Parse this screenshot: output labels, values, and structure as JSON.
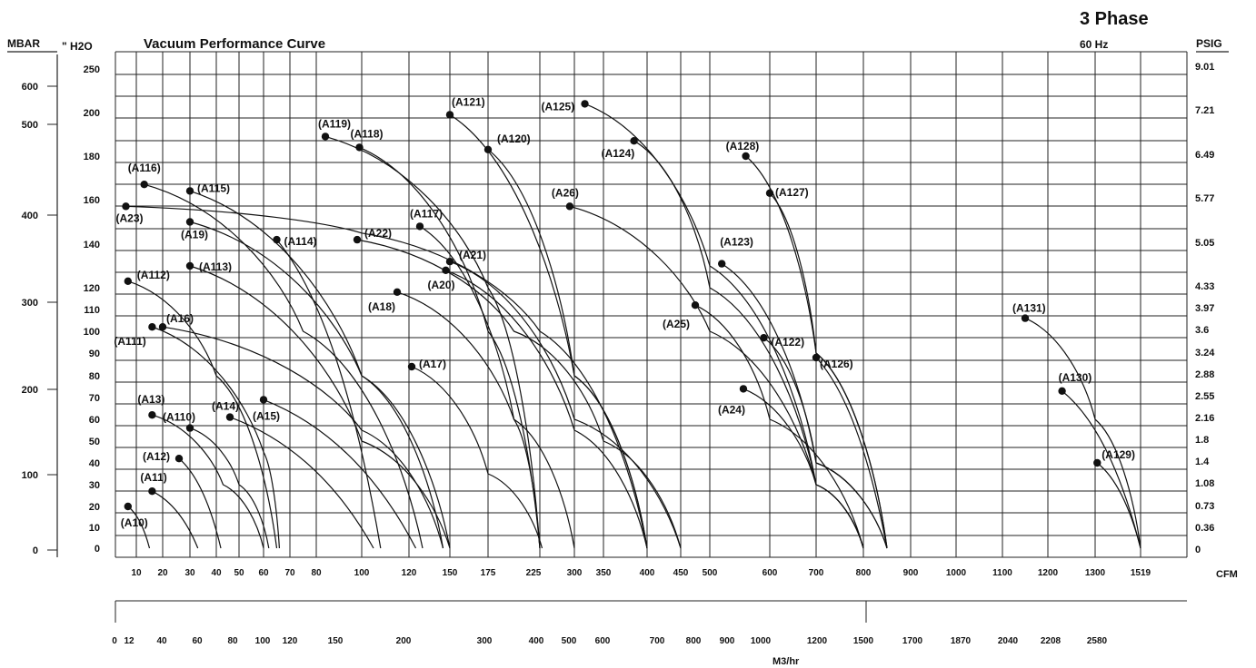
{
  "chart_data": {
    "type": "line",
    "title": "Vacuum Performance Curve",
    "phase_label": "3 Phase",
    "frequency_label": "60 Hz",
    "left_outer_unit": "MBAR",
    "left_inner_unit": "\" H2O",
    "right_unit": "PSIG",
    "x_unit": "CFM",
    "x2_unit": "M3/hr",
    "inh2o_ticks": [
      "250",
      "200",
      "180",
      "160",
      "140",
      "120",
      "110",
      "100",
      "90",
      "80",
      "70",
      "60",
      "50",
      "40",
      "30",
      "20",
      "10",
      "0"
    ],
    "mbar_ticks": [
      "600",
      "500",
      "400",
      "300",
      "200",
      "100",
      "0"
    ],
    "psig_ticks": [
      "9.01",
      "7.21",
      "6.49",
      "5.77",
      "5.05",
      "4.33",
      "3.97",
      "3.6",
      "3.24",
      "2.88",
      "2.55",
      "2.16",
      "1.8",
      "1.4",
      "1.08",
      "0.73",
      "0.36",
      "0"
    ],
    "cfm_ticks": [
      "10",
      "20",
      "30",
      "40",
      "50",
      "60",
      "70",
      "80",
      "100",
      "120",
      "150",
      "175",
      "225",
      "300",
      "350",
      "400",
      "450",
      "500",
      "600",
      "700",
      "800",
      "900",
      "1000",
      "1100",
      "1200",
      "1300",
      "1519"
    ],
    "m3hr_ticks": [
      "0",
      "12",
      "40",
      "60",
      "80",
      "100",
      "120",
      "150",
      "200",
      "300",
      "400",
      "500",
      "600",
      "700",
      "800",
      "900",
      "1000",
      "1200",
      "1500",
      "1700",
      "1870",
      "2040",
      "2208",
      "2580"
    ],
    "series": [
      {
        "name": "(A10)",
        "points": [
          [
            6,
            20
          ],
          [
            15,
            0
          ]
        ]
      },
      {
        "name": "(A11)",
        "points": [
          [
            16,
            27
          ],
          [
            33,
            0
          ]
        ]
      },
      {
        "name": "(A12)",
        "points": [
          [
            26,
            42
          ],
          [
            42,
            0
          ]
        ]
      },
      {
        "name": "(A13)",
        "points": [
          [
            16,
            62
          ],
          [
            43,
            30
          ],
          [
            60,
            0
          ]
        ]
      },
      {
        "name": "(A110)",
        "points": [
          [
            30,
            56
          ],
          [
            50,
            30
          ],
          [
            62,
            0
          ]
        ]
      },
      {
        "name": "(A14)",
        "points": [
          [
            46,
            61
          ],
          [
            105,
            0
          ]
        ]
      },
      {
        "name": "(A15)",
        "points": [
          [
            60,
            69
          ],
          [
            125,
            0
          ]
        ]
      },
      {
        "name": "(A111)",
        "points": [
          [
            16,
            102
          ],
          [
            60,
            45
          ],
          [
            66,
            0
          ]
        ]
      },
      {
        "name": "(A16)",
        "points": [
          [
            20,
            102
          ],
          [
            100,
            55
          ],
          [
            145,
            0
          ]
        ]
      },
      {
        "name": "(A112)",
        "points": [
          [
            6,
            123
          ],
          [
            40,
            80
          ],
          [
            65,
            0
          ]
        ]
      },
      {
        "name": "(A113)",
        "points": [
          [
            30,
            130
          ],
          [
            100,
            50
          ],
          [
            150,
            0
          ]
        ]
      },
      {
        "name": "(A17)",
        "points": [
          [
            122,
            84
          ],
          [
            175,
            35
          ],
          [
            230,
            0
          ]
        ]
      },
      {
        "name": "(A18)",
        "points": [
          [
            115,
            118
          ],
          [
            200,
            60
          ],
          [
            300,
            0
          ]
        ]
      },
      {
        "name": "(A19)",
        "points": [
          [
            30,
            150
          ],
          [
            100,
            80
          ],
          [
            150,
            0
          ]
        ]
      },
      {
        "name": "(A20)",
        "points": [
          [
            147,
            128
          ],
          [
            300,
            55
          ],
          [
            400,
            0
          ]
        ]
      },
      {
        "name": "(A21)",
        "points": [
          [
            150,
            132
          ],
          [
            300,
            60
          ],
          [
            450,
            0
          ]
        ]
      },
      {
        "name": "(A114)",
        "points": [
          [
            65,
            142
          ],
          [
            108,
            0
          ]
        ]
      },
      {
        "name": "(A115)",
        "points": [
          [
            30,
            164
          ],
          [
            100,
            80
          ],
          [
            145,
            0
          ]
        ]
      },
      {
        "name": "(A116)",
        "points": [
          [
            13,
            167
          ],
          [
            75,
            100
          ],
          [
            130,
            0
          ]
        ]
      },
      {
        "name": "(A117)",
        "points": [
          [
            128,
            148
          ],
          [
            200,
            60
          ],
          [
            225,
            0
          ]
        ]
      },
      {
        "name": "(A22)",
        "points": [
          [
            98,
            142
          ],
          [
            200,
            100
          ],
          [
            350,
            50
          ],
          [
            450,
            0
          ]
        ]
      },
      {
        "name": "(A23)",
        "points": [
          [
            5,
            157
          ],
          [
            100,
            145
          ],
          [
            225,
            100
          ],
          [
            400,
            0
          ]
        ]
      },
      {
        "name": "(A118)",
        "points": [
          [
            99,
            184
          ],
          [
            175,
            100
          ],
          [
            225,
            0
          ]
        ]
      },
      {
        "name": "(A119)",
        "points": [
          [
            84,
            189
          ],
          [
            175,
            120
          ],
          [
            225,
            0
          ]
        ]
      },
      {
        "name": "(A120)",
        "points": [
          [
            175,
            183
          ],
          [
            300,
            80
          ],
          [
            400,
            0
          ]
        ]
      },
      {
        "name": "(A121)",
        "points": [
          [
            150,
            199
          ],
          [
            300,
            80
          ],
          [
            400,
            0
          ]
        ]
      },
      {
        "name": "(A24)",
        "points": [
          [
            556,
            74
          ],
          [
            700,
            30
          ],
          [
            800,
            0
          ]
        ]
      },
      {
        "name": "(A25)",
        "points": [
          [
            475,
            112
          ],
          [
            600,
            60
          ],
          [
            800,
            0
          ]
        ]
      },
      {
        "name": "(A26)",
        "points": [
          [
            290,
            157
          ],
          [
            500,
            100
          ],
          [
            700,
            30
          ],
          [
            800,
            0
          ]
        ]
      },
      {
        "name": "(A122)",
        "points": [
          [
            590,
            97
          ],
          [
            700,
            40
          ],
          [
            850,
            0
          ]
        ]
      },
      {
        "name": "(A123)",
        "points": [
          [
            520,
            131
          ],
          [
            700,
            40
          ],
          [
            850,
            0
          ]
        ]
      },
      {
        "name": "(A124)",
        "points": [
          [
            385,
            187
          ],
          [
            500,
            120
          ],
          [
            700,
            30
          ],
          [
            800,
            0
          ]
        ]
      },
      {
        "name": "(A125)",
        "points": [
          [
            318,
            210
          ],
          [
            500,
            130
          ],
          [
            700,
            30
          ],
          [
            800,
            0
          ]
        ]
      },
      {
        "name": "(A126)",
        "points": [
          [
            700,
            88
          ],
          [
            850,
            0
          ]
        ]
      },
      {
        "name": "(A127)",
        "points": [
          [
            600,
            163
          ],
          [
            700,
            90
          ],
          [
            850,
            0
          ]
        ]
      },
      {
        "name": "(A128)",
        "points": [
          [
            560,
            180
          ],
          [
            700,
            90
          ],
          [
            850,
            0
          ]
        ]
      },
      {
        "name": "(A129)",
        "points": [
          [
            1310,
            40
          ],
          [
            1519,
            0
          ]
        ]
      },
      {
        "name": "(A130)",
        "points": [
          [
            1230,
            73
          ],
          [
            1519,
            0
          ]
        ]
      },
      {
        "name": "(A131)",
        "points": [
          [
            1150,
            106
          ],
          [
            1300,
            60
          ],
          [
            1519,
            0
          ]
        ]
      }
    ]
  }
}
